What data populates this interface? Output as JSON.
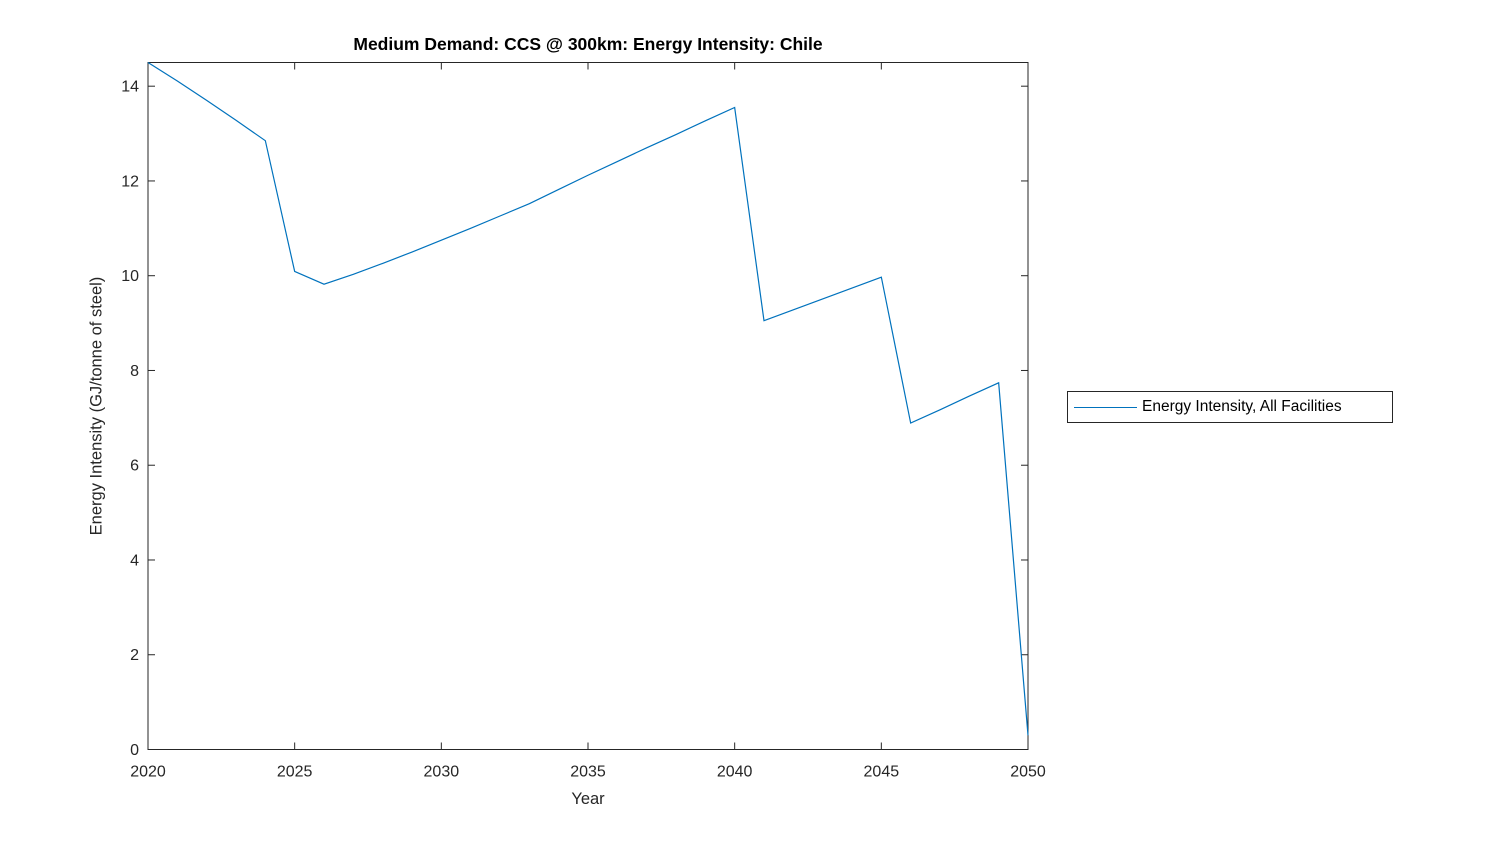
{
  "figure": {
    "background": "#ffffff"
  },
  "chart_data": {
    "type": "line",
    "title": "Medium Demand: CCS @ 300km: Energy Intensity: Chile",
    "xlabel": "Year",
    "ylabel": "Energy Intensity (GJ/tonne of steel)",
    "xlim": [
      2020,
      2050
    ],
    "ylim": [
      0,
      14.5
    ],
    "xticks": [
      2020,
      2025,
      2030,
      2035,
      2040,
      2045,
      2050
    ],
    "yticks": [
      0,
      2,
      4,
      6,
      8,
      10,
      12,
      14
    ],
    "grid": false,
    "box": true,
    "tick_direction": "in",
    "legend_position": "outside-right",
    "axis_color": "#262626",
    "line_color": "#0072BD",
    "series": [
      {
        "name": "Energy Intensity, All Facilities",
        "x": [
          2020,
          2021,
          2022,
          2023,
          2024,
          2025,
          2026,
          2027,
          2028,
          2029,
          2030,
          2031,
          2032,
          2033,
          2034,
          2035,
          2036,
          2037,
          2038,
          2039,
          2040,
          2041,
          2042,
          2043,
          2044,
          2045,
          2046,
          2047,
          2048,
          2049,
          2050
        ],
        "values": [
          14.5,
          14.11,
          13.7,
          13.28,
          12.85,
          10.09,
          9.82,
          10.03,
          10.26,
          10.5,
          10.75,
          11.0,
          11.26,
          11.52,
          11.82,
          12.12,
          12.41,
          12.7,
          12.98,
          13.27,
          13.55,
          9.05,
          9.28,
          9.51,
          9.74,
          9.97,
          6.89,
          7.17,
          7.46,
          7.74,
          0.3
        ]
      }
    ]
  }
}
